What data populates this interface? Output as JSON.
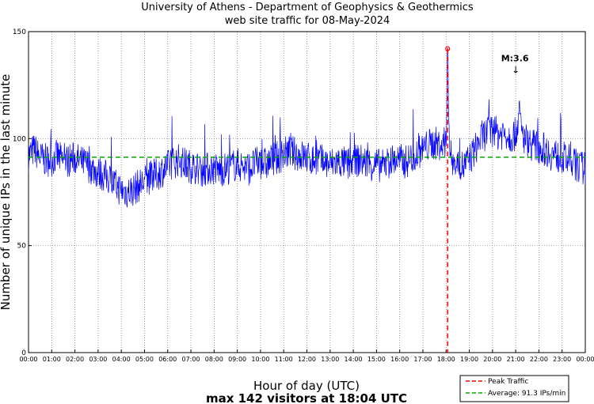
{
  "chart_data": {
    "type": "line",
    "title": "University of Athens - Department of Geophysics & Geothermics",
    "subtitle": "web site traffic for 08-May-2024",
    "xlabel": "Hour of day (UTC)",
    "xlabel_note": "max 142 visitors at 18:04 UTC",
    "ylabel": "Number of unique IPs in the last minute",
    "ylim": [
      0,
      150
    ],
    "yticks": [
      0,
      50,
      100,
      150
    ],
    "xlim_hours": [
      0,
      24
    ],
    "xticks": [
      "00:00",
      "01:00",
      "02:00",
      "03:00",
      "04:00",
      "05:00",
      "06:00",
      "07:00",
      "08:00",
      "09:00",
      "10:00",
      "11:00",
      "12:00",
      "13:00",
      "14:00",
      "15:00",
      "16:00",
      "17:00",
      "18:00",
      "19:00",
      "20:00",
      "21:00",
      "22:00",
      "23:00",
      "00:00"
    ],
    "grid": true,
    "series": [
      {
        "name": "",
        "color": "#0000ff",
        "resolution": "per minute (approximate trend shown)",
        "points": [
          [
            0.0,
            92
          ],
          [
            0.25,
            95
          ],
          [
            0.5,
            91
          ],
          [
            0.75,
            90
          ],
          [
            1.0,
            90
          ],
          [
            1.25,
            92
          ],
          [
            1.5,
            89
          ],
          [
            1.75,
            90
          ],
          [
            2.0,
            91
          ],
          [
            2.25,
            89
          ],
          [
            2.5,
            88
          ],
          [
            2.75,
            86
          ],
          [
            3.0,
            84
          ],
          [
            3.25,
            83
          ],
          [
            3.5,
            81
          ],
          [
            3.75,
            78
          ],
          [
            4.0,
            76
          ],
          [
            4.25,
            75
          ],
          [
            4.5,
            76
          ],
          [
            4.75,
            78
          ],
          [
            5.0,
            80
          ],
          [
            5.25,
            82
          ],
          [
            5.5,
            83
          ],
          [
            5.75,
            85
          ],
          [
            6.0,
            87
          ],
          [
            6.25,
            89
          ],
          [
            6.5,
            90
          ],
          [
            6.75,
            88
          ],
          [
            7.0,
            87
          ],
          [
            7.25,
            86
          ],
          [
            7.5,
            85
          ],
          [
            7.75,
            86
          ],
          [
            8.0,
            86
          ],
          [
            8.25,
            85
          ],
          [
            8.5,
            86
          ],
          [
            8.75,
            87
          ],
          [
            9.0,
            88
          ],
          [
            9.25,
            87
          ],
          [
            9.5,
            86
          ],
          [
            9.75,
            88
          ],
          [
            10.0,
            89
          ],
          [
            10.25,
            88
          ],
          [
            10.5,
            90
          ],
          [
            10.75,
            91
          ],
          [
            11.0,
            93
          ],
          [
            11.25,
            94
          ],
          [
            11.5,
            93
          ],
          [
            11.75,
            92
          ],
          [
            12.0,
            91
          ],
          [
            12.25,
            90
          ],
          [
            12.5,
            90
          ],
          [
            12.75,
            89
          ],
          [
            13.0,
            88
          ],
          [
            13.25,
            89
          ],
          [
            13.5,
            89
          ],
          [
            13.75,
            88
          ],
          [
            14.0,
            89
          ],
          [
            14.25,
            90
          ],
          [
            14.5,
            89
          ],
          [
            14.75,
            88
          ],
          [
            15.0,
            88
          ],
          [
            15.25,
            87
          ],
          [
            15.5,
            89
          ],
          [
            15.75,
            90
          ],
          [
            16.0,
            90
          ],
          [
            16.25,
            89
          ],
          [
            16.5,
            91
          ],
          [
            16.75,
            93
          ],
          [
            17.0,
            95
          ],
          [
            17.25,
            97
          ],
          [
            17.5,
            98
          ],
          [
            17.75,
            97
          ],
          [
            18.0,
            96
          ],
          [
            18.067,
            142
          ],
          [
            18.15,
            95
          ],
          [
            18.25,
            90
          ],
          [
            18.5,
            88
          ],
          [
            18.75,
            87
          ],
          [
            19.0,
            90
          ],
          [
            19.25,
            95
          ],
          [
            19.5,
            100
          ],
          [
            19.75,
            103
          ],
          [
            20.0,
            104
          ],
          [
            20.25,
            102
          ],
          [
            20.5,
            103
          ],
          [
            20.75,
            101
          ],
          [
            21.0,
            102
          ],
          [
            21.15,
            112
          ],
          [
            21.3,
            101
          ],
          [
            21.5,
            99
          ],
          [
            21.75,
            97
          ],
          [
            22.0,
            96
          ],
          [
            22.25,
            95
          ],
          [
            22.5,
            93
          ],
          [
            22.75,
            92
          ],
          [
            23.0,
            91
          ],
          [
            23.25,
            90
          ],
          [
            23.5,
            88
          ],
          [
            23.75,
            87
          ],
          [
            24.0,
            86
          ]
        ]
      }
    ],
    "average": {
      "value": 91.3,
      "color": "#00aa00",
      "style": "dashed"
    },
    "peak": {
      "time_hours": 18.067,
      "value": 142,
      "color": "#ff0000",
      "style": "dashed"
    },
    "annotations": [
      {
        "text": "M:3.6",
        "x_hours": 21.0,
        "y": 132,
        "arrow": "↓"
      }
    ],
    "legend": {
      "placement": "bottom-right",
      "entries": [
        {
          "label": "Peak Traffic",
          "color": "#ff0000",
          "style": "dashed"
        },
        {
          "label": "Average: 91.3 IPs/min",
          "color": "#00aa00",
          "style": "dashed"
        }
      ]
    }
  }
}
